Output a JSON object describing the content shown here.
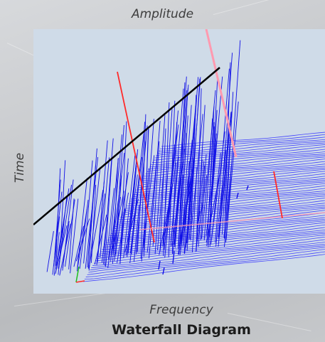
{
  "chart_data": {
    "type": "waterfall-3d",
    "title": "Waterfall Diagram",
    "xlabel": "Frequency",
    "ylabel": "Amplitude",
    "zlabel": "Time",
    "colors": {
      "trace": "#1010e6",
      "floor_trace": "#3434ff",
      "axis_red": "#ff2a2a",
      "axis_pink": "#ff9ab0",
      "axis_black": "#000000",
      "axis_green": "#1dbf1d",
      "plot_background": "#cfdbe8"
    }
  }
}
